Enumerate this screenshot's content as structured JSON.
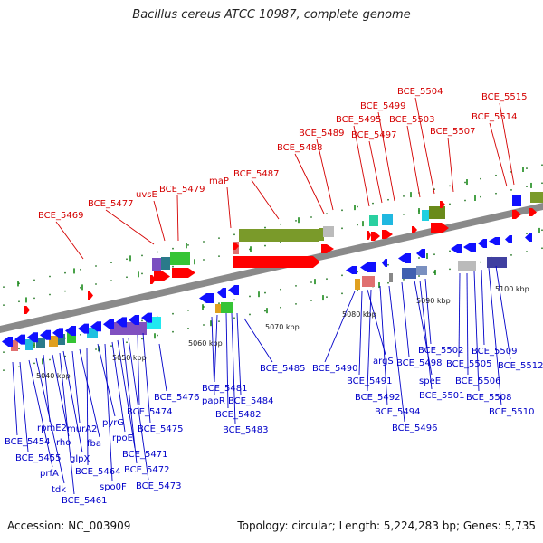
{
  "title": "Bacillus cereus ATCC 10987, complete genome",
  "footer": {
    "accession": "Accession: NC_003909",
    "summary": "Topology: circular; Length: 5,224,283 bp; Genes: 5,735"
  },
  "scale_labels": [
    "5040 kbp",
    "5050 kbp",
    "5060 kbp",
    "5070 kbp",
    "5080 kbp",
    "5090 kbp",
    "5100 kbp"
  ],
  "top_labels": [
    "BCE_5469",
    "BCE_5477",
    "uvsE",
    "BCE_5479",
    "maP",
    "BCE_5487",
    "BCE_5488",
    "BCE_5489",
    "BCE_5495",
    "BCE_5497",
    "BCE_5499",
    "BCE_5503",
    "BCE_5504",
    "BCE_5507",
    "BCE_5514",
    "BCE_5515"
  ],
  "bottom_labels": [
    "BCE_5454",
    "BCE_5455",
    "prfA",
    "tdk",
    "rpmE2",
    "rho",
    "BCE_5461",
    "glpX",
    "murA2",
    "fba",
    "BCE_5464",
    "pyrG",
    "spo0F",
    "rpoE",
    "BCE_5471",
    "BCE_5472",
    "BCE_5473",
    "BCE_5474",
    "BCE_5475",
    "BCE_5476",
    "papR",
    "BCE_5481",
    "BCE_5482",
    "BCE_5483",
    "BCE_5484",
    "BCE_5485",
    "BCE_5490",
    "BCE_5491",
    "argS",
    "BCE_5492",
    "BCE_5494",
    "BCE_5496",
    "BCE_5498",
    "speE",
    "BCE_5501",
    "BCE_5502",
    "BCE_5505",
    "BCE_5506",
    "BCE_5508",
    "BCE_5509",
    "BCE_5510",
    "BCE_5512"
  ],
  "colors": {
    "top_label": "#d40000",
    "bottom_label": "#0000c8",
    "backbone": "#8a8a8a",
    "forward_gene": "#ff0000",
    "reverse_gene": "#1010ff",
    "tick": "#1a8a1a"
  }
}
